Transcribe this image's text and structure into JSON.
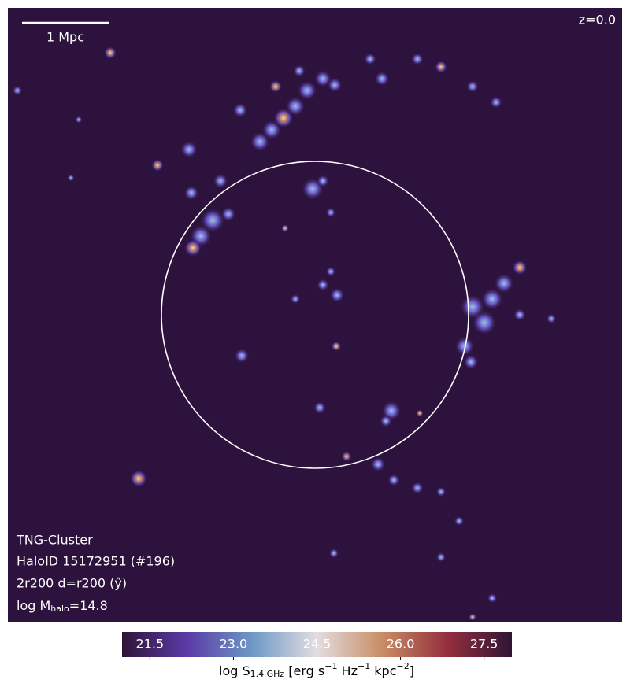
{
  "chart_data": {
    "type": "map",
    "scale_bar_label": "1 Mpc",
    "redshift_label": "z=0.0",
    "info_lines": [
      "TNG-Cluster",
      "HaloID 15172951 (#196)",
      "2r200 d=r200 (ŷ)"
    ],
    "mass_label": [
      {
        "text": "log M",
        "style": "normal"
      },
      {
        "text": "halo",
        "style": "sub"
      },
      {
        "text": "=14.8",
        "style": "normal"
      }
    ],
    "colorbar": {
      "clim": [
        21,
        28
      ],
      "ticks": [
        21.5,
        {
          "value": 23,
          "label": "23.0"
        },
        24.5,
        {
          "value": 26,
          "label": "26.0"
        },
        27.5
      ],
      "colors": [
        "#2f1436",
        "#5b3aa6",
        "#6d98c6",
        "#e3dde0",
        "#c98d65",
        "#962f3e",
        "#2f1436"
      ],
      "label": [
        {
          "text": "log S",
          "style": "normal"
        },
        {
          "text": "1.4 GHz",
          "style": "sub"
        },
        {
          "text": " [erg s",
          "style": "normal"
        },
        {
          "text": "−1",
          "style": "sup"
        },
        {
          "text": " Hz",
          "style": "normal"
        },
        {
          "text": "−1",
          "style": "sup"
        },
        {
          "text": " kpc",
          "style": "normal"
        },
        {
          "text": "−2",
          "style": "sup"
        },
        {
          "text": "]",
          "style": "normal"
        }
      ]
    }
  }
}
